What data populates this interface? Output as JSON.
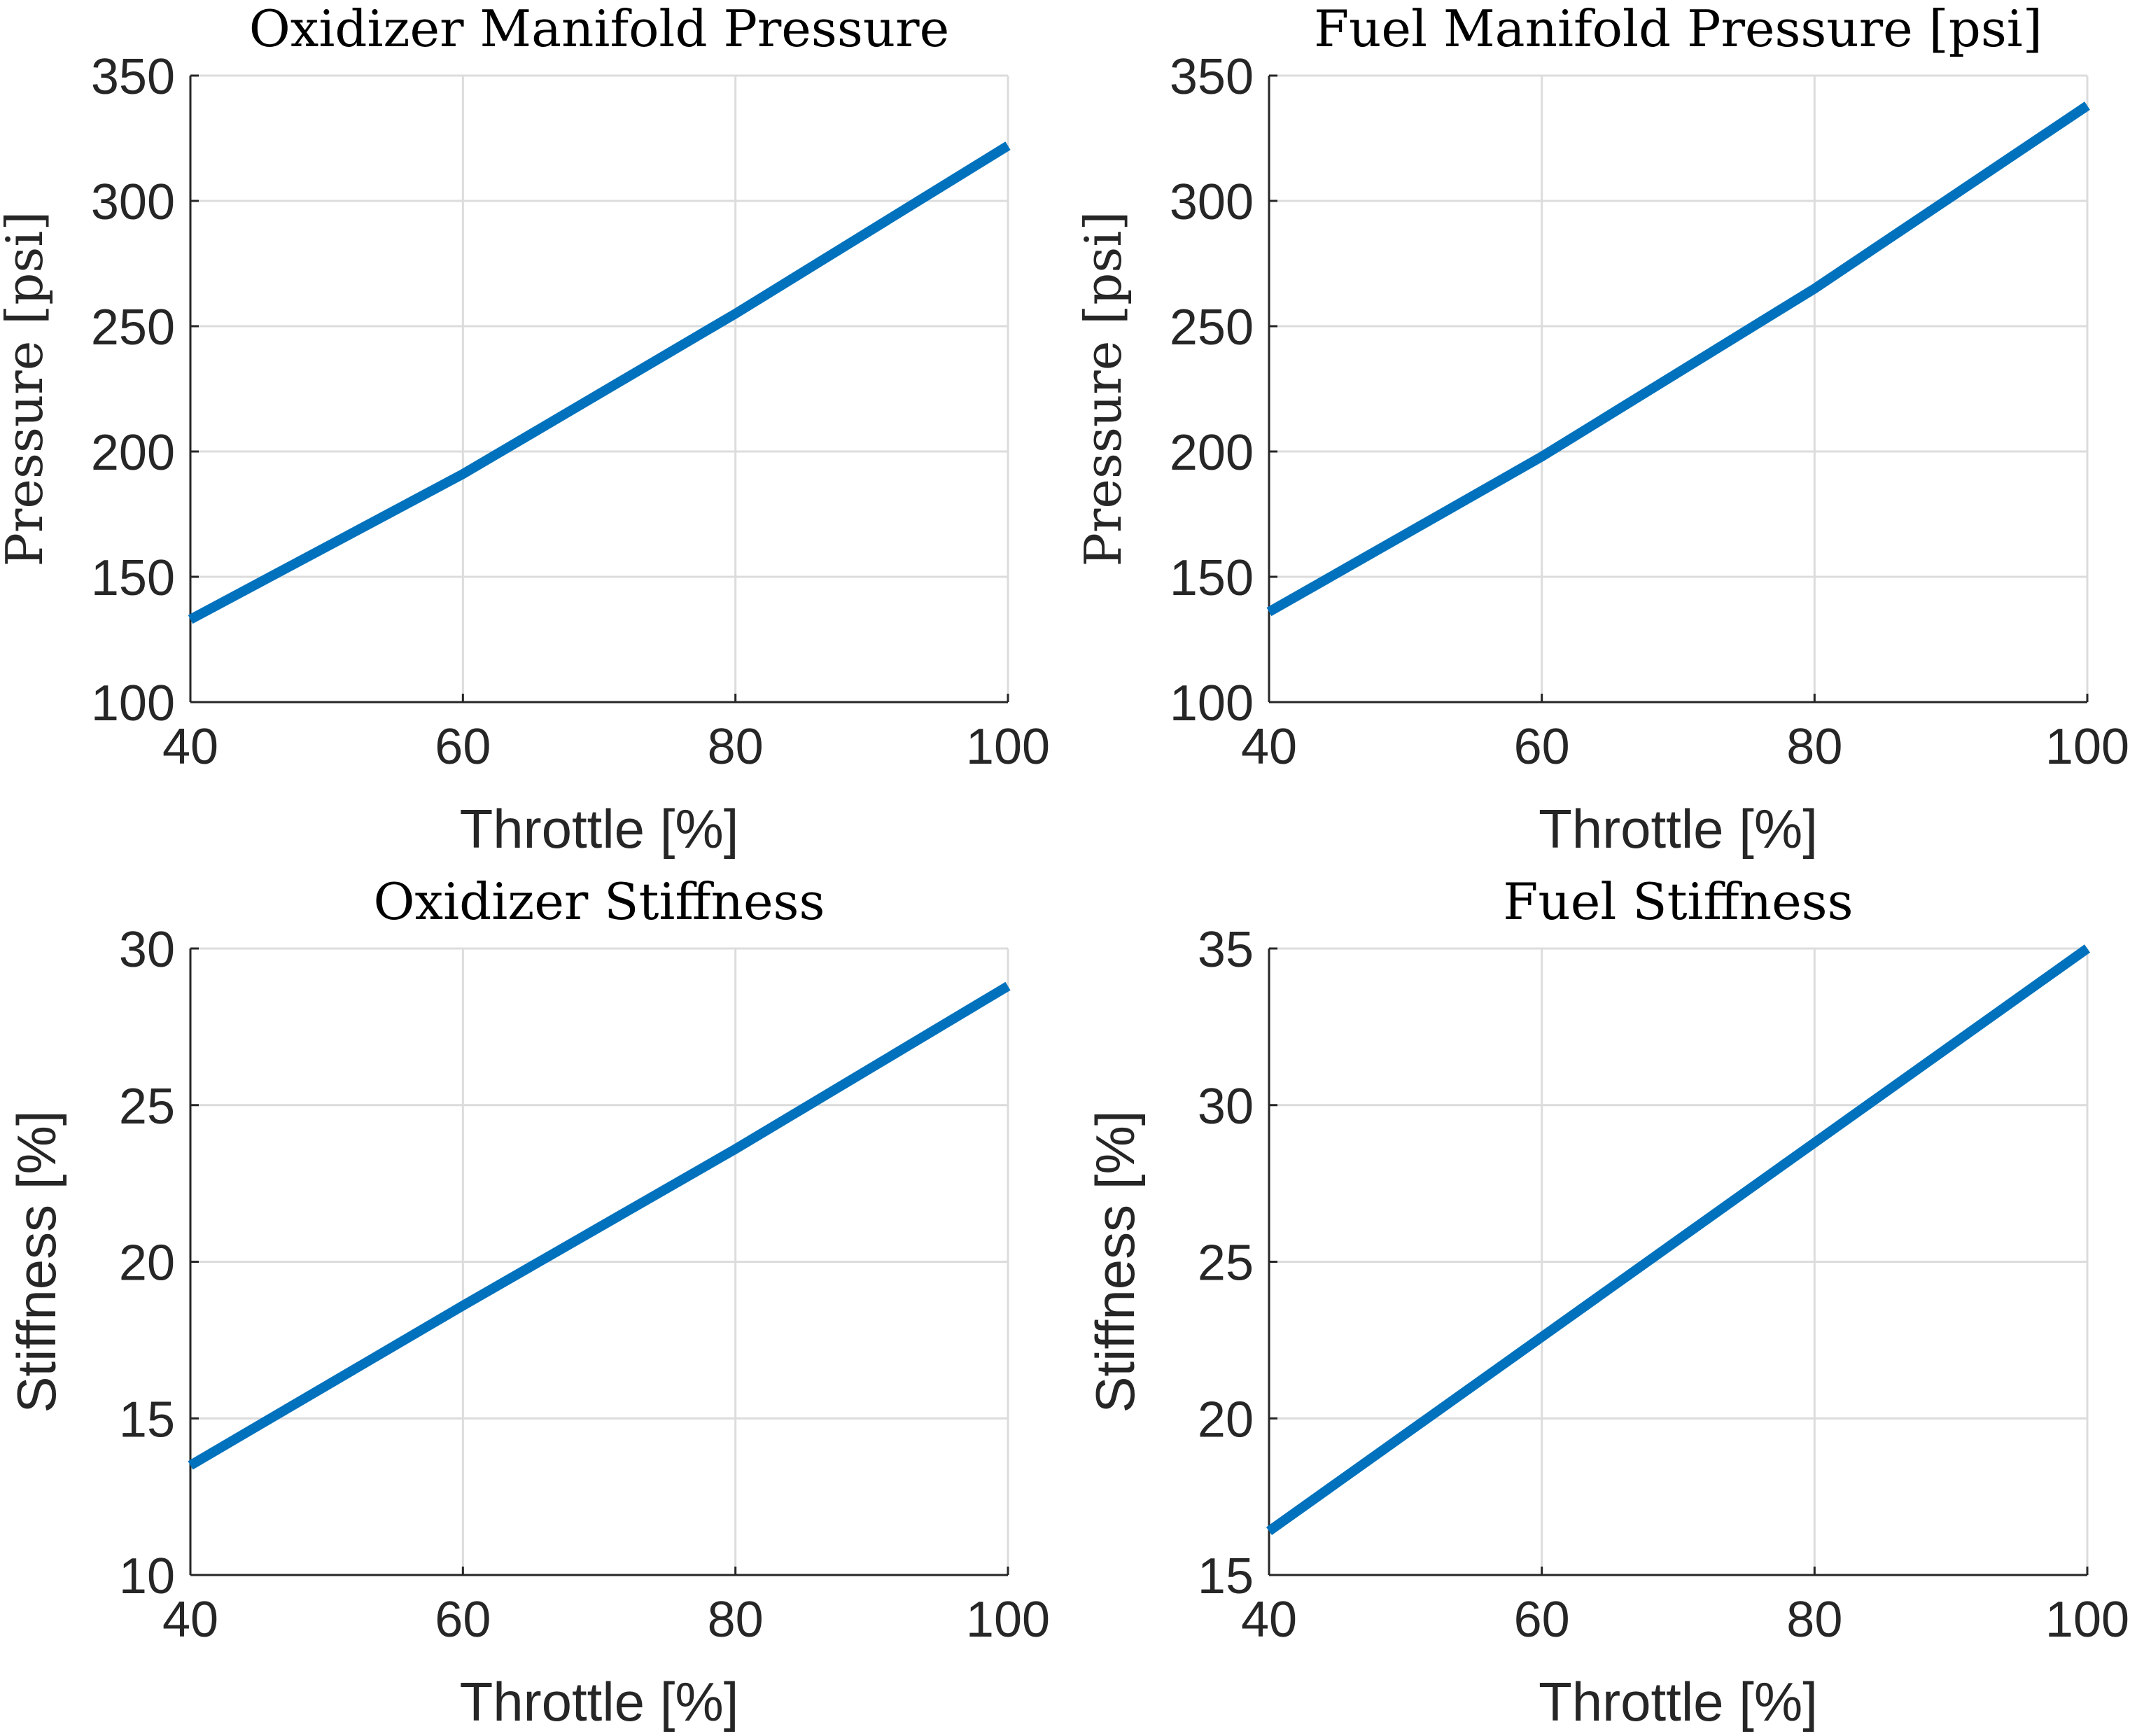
{
  "colors": {
    "series": "#0072BD",
    "grid": "#dcdcdc",
    "axis": "#262626"
  },
  "chart_data": [
    {
      "type": "line",
      "title": "Oxidizer Manifold Pressure",
      "xlabel": "Throttle [%]",
      "ylabel": "Pressure [psi]",
      "xlim": [
        40,
        100
      ],
      "ylim": [
        100,
        350
      ],
      "xticks": [
        40,
        60,
        80,
        100
      ],
      "yticks": [
        100,
        150,
        200,
        250,
        300,
        350
      ],
      "grid": true,
      "x": [
        40,
        60,
        80,
        100
      ],
      "series": [
        {
          "values": [
            133,
            191,
            255,
            322
          ]
        }
      ]
    },
    {
      "type": "line",
      "title": "Fuel Manifold Pressure [psi]",
      "xlabel": "Throttle [%]",
      "ylabel": "Pressure [psi]",
      "xlim": [
        40,
        100
      ],
      "ylim": [
        100,
        350
      ],
      "xticks": [
        40,
        60,
        80,
        100
      ],
      "yticks": [
        100,
        150,
        200,
        250,
        300,
        350
      ],
      "grid": true,
      "x": [
        40,
        60,
        80,
        100
      ],
      "series": [
        {
          "values": [
            136,
            198,
            265,
            338
          ]
        }
      ]
    },
    {
      "type": "line",
      "title": "Oxidizer Stiffness",
      "xlabel": "Throttle [%]",
      "ylabel": "Stiffness [%]",
      "xlim": [
        40,
        100
      ],
      "ylim": [
        10,
        30
      ],
      "xticks": [
        40,
        60,
        80,
        100
      ],
      "yticks": [
        10,
        15,
        20,
        25,
        30
      ],
      "grid": true,
      "x": [
        40,
        60,
        80,
        100
      ],
      "series": [
        {
          "values": [
            13.5,
            18.6,
            23.6,
            28.8
          ]
        }
      ]
    },
    {
      "type": "line",
      "title": "Fuel Stiffness",
      "xlabel": "Throttle [%]",
      "ylabel": "Stiffness [%]",
      "xlim": [
        40,
        100
      ],
      "ylim": [
        15,
        35
      ],
      "xticks": [
        40,
        60,
        80,
        100
      ],
      "yticks": [
        15,
        20,
        25,
        30,
        35
      ],
      "grid": true,
      "x": [
        40,
        60,
        80,
        100
      ],
      "series": [
        {
          "values": [
            16.4,
            22.6,
            28.8,
            35.0
          ]
        }
      ]
    }
  ]
}
